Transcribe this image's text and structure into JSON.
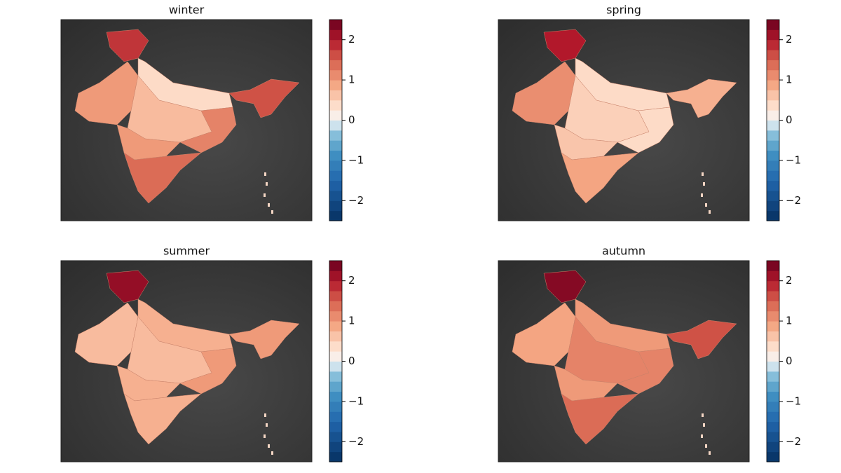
{
  "chart_data": [
    {
      "type": "map",
      "title": "winter",
      "values": [
        1.8,
        1.0,
        0.4,
        0.7,
        1.2,
        1.6,
        1.0,
        1.4
      ],
      "ylim": [
        -2.5,
        2.5
      ],
      "yticks": [
        {
          "value": -2,
          "label": "−2"
        },
        {
          "value": -1,
          "label": "−1"
        },
        0,
        1,
        2
      ]
    },
    {
      "type": "map",
      "title": "spring",
      "values": [
        2.0,
        1.1,
        0.4,
        0.5,
        0.4,
        0.8,
        0.6,
        0.9
      ],
      "ylim": [
        -2.5,
        2.5
      ],
      "yticks": [
        {
          "value": -2,
          "label": "−2"
        },
        {
          "value": -1,
          "label": "−1"
        },
        0,
        1,
        2
      ]
    },
    {
      "type": "map",
      "title": "summer",
      "values": [
        2.2,
        0.7,
        0.8,
        0.7,
        1.0,
        1.0,
        0.8,
        0.8
      ],
      "ylim": [
        -2.5,
        2.5
      ],
      "yticks": [
        {
          "value": -2,
          "label": "−2"
        },
        {
          "value": -1,
          "label": "−1"
        },
        0,
        1,
        2
      ]
    },
    {
      "type": "map",
      "title": "autumn",
      "values": [
        2.3,
        0.9,
        1.0,
        1.2,
        1.2,
        1.6,
        1.0,
        1.4
      ],
      "ylim": [
        -2.5,
        2.5
      ],
      "yticks": [
        {
          "value": -2,
          "label": "−2"
        },
        {
          "value": -1,
          "label": "−1"
        },
        0,
        1,
        2
      ]
    }
  ]
}
